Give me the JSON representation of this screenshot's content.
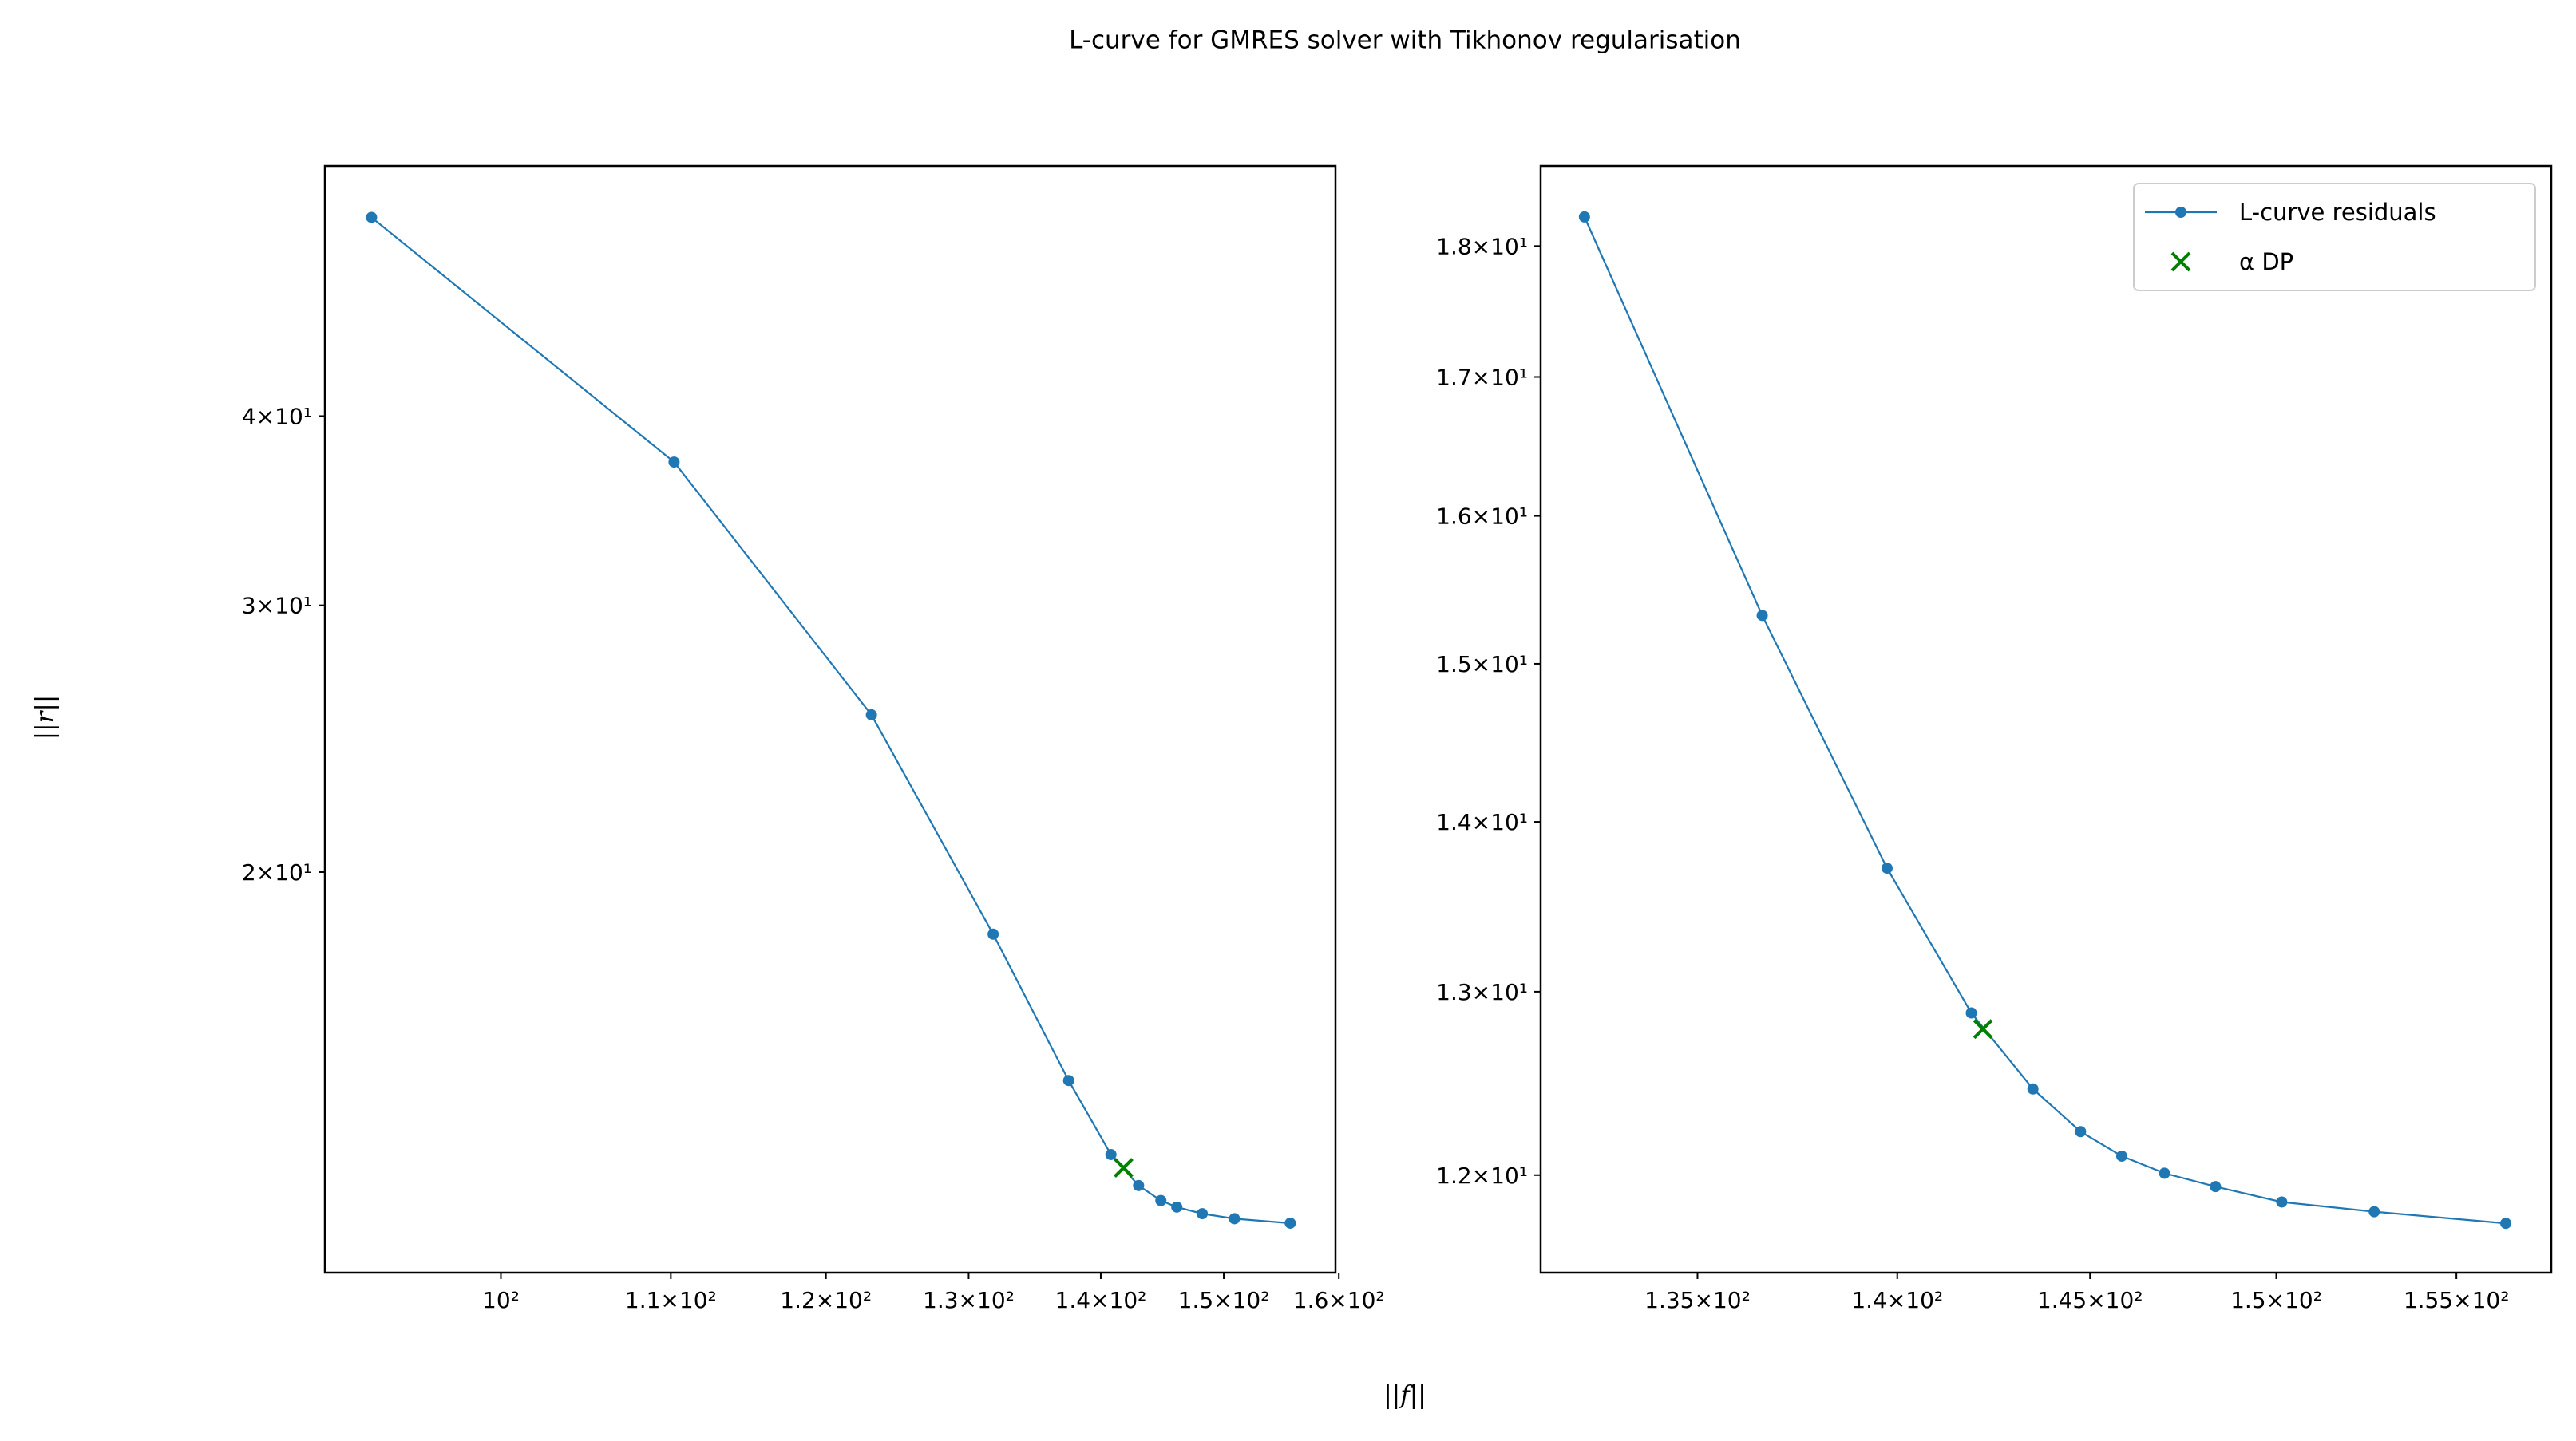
{
  "figure": {
    "title": "L-curve for GMRES solver with Tikhonov regularisation",
    "xlabel": "||f||",
    "ylabel": "||r||"
  },
  "chart_data": [
    {
      "type": "line",
      "xscale": "log",
      "yscale": "log",
      "xlim": [
        90.6,
        159.7
      ],
      "ylim": [
        10.88,
        58.5
      ],
      "xticks": [
        {
          "value": 100,
          "label": "10²"
        },
        {
          "value": 110,
          "label": "1.1×10²"
        },
        {
          "value": 120,
          "label": "1.2×10²"
        },
        {
          "value": 130,
          "label": "1.3×10²"
        },
        {
          "value": 140,
          "label": "1.4×10²"
        },
        {
          "value": 150,
          "label": "1.5×10²"
        },
        {
          "value": 160,
          "label": "1.6×10²"
        }
      ],
      "yticks": [
        {
          "value": 20,
          "label": "2×10¹"
        },
        {
          "value": 30,
          "label": "3×10¹"
        },
        {
          "value": 40,
          "label": "4×10¹"
        }
      ],
      "series": [
        {
          "color": "#1f77b4",
          "marker": "o",
          "x": [
            93.0,
            110.2,
            123.1,
            131.8,
            137.5,
            140.8,
            143.0,
            144.8,
            146.1,
            148.2,
            150.9,
            155.7
          ],
          "values": [
            54.1,
            37.3,
            25.4,
            18.2,
            14.57,
            13.02,
            12.42,
            12.14,
            12.02,
            11.9,
            11.81,
            11.73
          ]
        },
        {
          "color": "#008000",
          "marker": "x",
          "x": [
            141.8
          ],
          "values": [
            12.76
          ]
        }
      ]
    },
    {
      "type": "line",
      "xscale": "log",
      "yscale": "log",
      "legend": "upper right",
      "xlim": [
        131.2,
        157.7
      ],
      "ylim": [
        11.5,
        18.64
      ],
      "xticks": [
        {
          "value": 135,
          "label": "1.35×10²"
        },
        {
          "value": 140,
          "label": "1.4×10²"
        },
        {
          "value": 145,
          "label": "1.45×10²"
        },
        {
          "value": 150,
          "label": "1.5×10²"
        },
        {
          "value": 155,
          "label": "1.55×10²"
        }
      ],
      "yticks": [
        {
          "value": 12,
          "label": "1.2×10¹"
        },
        {
          "value": 13,
          "label": "1.3×10¹"
        },
        {
          "value": 14,
          "label": "1.4×10¹"
        },
        {
          "value": 15,
          "label": "1.5×10¹"
        },
        {
          "value": 16,
          "label": "1.6×10¹"
        },
        {
          "value": 17,
          "label": "1.7×10¹"
        },
        {
          "value": 18,
          "label": "1.8×10¹"
        }
      ],
      "series": [
        {
          "name": "L-curve residuals",
          "color": "#1f77b4",
          "marker": "o",
          "x": [
            132.25,
            136.6,
            139.74,
            141.9,
            143.5,
            144.75,
            145.84,
            146.98,
            148.35,
            150.15,
            152.7,
            156.4
          ],
          "values": [
            18.23,
            15.32,
            13.72,
            12.88,
            12.46,
            12.23,
            12.1,
            12.01,
            11.94,
            11.86,
            11.81,
            11.75
          ]
        },
        {
          "name": "α DP",
          "color": "#008000",
          "marker": "x",
          "x": [
            142.2
          ],
          "values": [
            12.79
          ]
        }
      ]
    }
  ]
}
